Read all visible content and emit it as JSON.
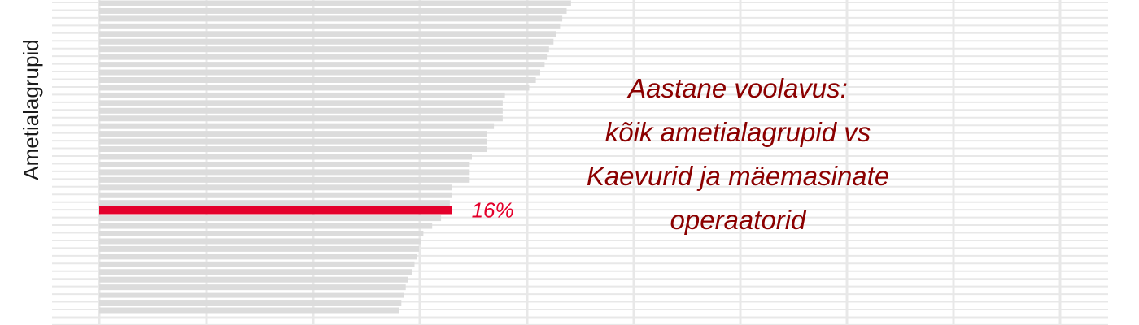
{
  "chart_data": {
    "type": "bar",
    "orientation": "horizontal",
    "ylabel": "Ametialagrupid",
    "grid": true,
    "annotation": [
      "Aastane voolavus:",
      "kõik ametialagrupid vs",
      "Kaevurid ja mäemasinate",
      "operaatorid"
    ],
    "highlight": {
      "label": "16%",
      "value": 16
    },
    "values": [
      21.4,
      21.2,
      21.0,
      20.9,
      20.7,
      20.6,
      20.4,
      20.3,
      20.2,
      20.0,
      19.8,
      19.5,
      18.4,
      18.3,
      18.3,
      18.3,
      17.9,
      17.6,
      17.6,
      17.6,
      16.9,
      16.8,
      16.8,
      16.8,
      16.0,
      16.0,
      15.9,
      15.7,
      15.5,
      15.1,
      14.7,
      14.6,
      14.5,
      14.4,
      14.3,
      14.2,
      14.0,
      13.9,
      13.8,
      13.7,
      13.6
    ],
    "colors": {
      "bar": "#dcdcdc",
      "highlight": "#e4002b",
      "grid": "#e8e8e8",
      "annotation": "#8b0000"
    }
  }
}
